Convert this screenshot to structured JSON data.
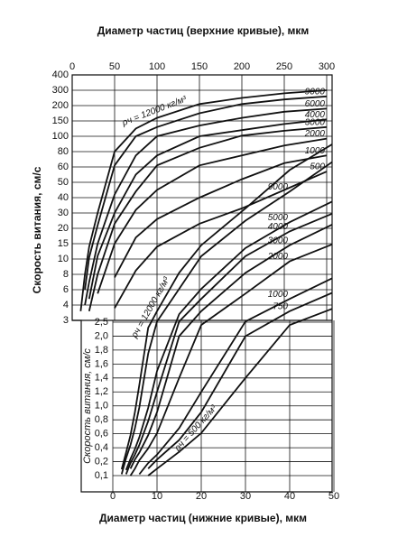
{
  "chart_data": {
    "type": "line",
    "x2_label": "Диаметр частиц (верхние кривые), мкм",
    "x_label": "Диаметр частиц (нижние кривые), мкм",
    "y_label": "Скорость витания, см/с",
    "y_inner_label": "Скорость витания, см/с",
    "color": "#111111",
    "grid": true,
    "x2lim": [
      0,
      300
    ],
    "x2ticks": [
      0,
      50,
      100,
      150,
      200,
      250,
      300
    ],
    "xlim": [
      0,
      50
    ],
    "xticks": [
      0,
      10,
      20,
      30,
      40,
      50
    ],
    "ylim": [
      0.1,
      400
    ],
    "yticks": [
      3,
      4,
      6,
      8,
      10,
      15,
      20,
      30,
      40,
      50,
      60,
      80,
      100,
      150,
      200,
      300,
      400
    ],
    "y_inner_ticks": [
      {
        "value": 0.1,
        "label": "0,1"
      },
      {
        "value": 0.2,
        "label": "0,2"
      },
      {
        "value": 0.4,
        "label": "0,4"
      },
      {
        "value": 0.6,
        "label": "0,6"
      },
      {
        "value": 0.8,
        "label": "0,8"
      },
      {
        "value": 1.0,
        "label": "1,0"
      },
      {
        "value": 1.2,
        "label": "1,2"
      },
      {
        "value": 1.4,
        "label": "1,4"
      },
      {
        "value": 1.6,
        "label": "1,6"
      },
      {
        "value": 1.8,
        "label": "1,8"
      },
      {
        "value": 2.0,
        "label": "2,0"
      },
      {
        "value": 2.5,
        "label": "2,5"
      }
    ],
    "series": [
      {
        "name": "ρч = 12000 кг/м³",
        "x_axis": "x2",
        "x": [
          10,
          15,
          20,
          30,
          50,
          75,
          100,
          150,
          200,
          250,
          300
        ],
        "values": [
          3.6,
          8,
          14,
          30,
          80,
          125,
          160,
          210,
          250,
          280,
          300
        ]
      },
      {
        "name": "9000",
        "x_axis": "x2",
        "x": [
          15,
          20,
          30,
          50,
          75,
          100,
          150,
          200,
          250,
          300
        ],
        "values": [
          6,
          10.5,
          22,
          62,
          100,
          130,
          175,
          210,
          240,
          260
        ]
      },
      {
        "name": "6000",
        "x_axis": "x2",
        "x": [
          15,
          20,
          30,
          50,
          75,
          100,
          150,
          200,
          250,
          300
        ],
        "values": [
          4,
          7,
          15,
          42,
          75,
          100,
          135,
          160,
          180,
          190
        ]
      },
      {
        "name": "4000",
        "x_axis": "x2",
        "x": [
          20,
          30,
          50,
          75,
          100,
          150,
          200,
          250,
          300
        ],
        "values": [
          4.8,
          11,
          30,
          55,
          75,
          100,
          120,
          140,
          155
        ]
      },
      {
        "name": "3000",
        "x_axis": "x2",
        "x": [
          20,
          30,
          50,
          75,
          100,
          150,
          200,
          250,
          300
        ],
        "values": [
          3.6,
          8,
          23,
          44,
          62,
          85,
          102,
          118,
          130
        ]
      },
      {
        "name": "2000",
        "x_axis": "x2",
        "x": [
          30,
          50,
          75,
          100,
          150,
          200,
          250,
          300
        ],
        "values": [
          5.5,
          15,
          32,
          45,
          62,
          75,
          88,
          97
        ]
      },
      {
        "name": "1000",
        "x_axis": "x2",
        "x": [
          50,
          75,
          100,
          150,
          200,
          250,
          300
        ],
        "values": [
          7.6,
          17,
          26,
          40,
          52,
          65,
          75
        ]
      },
      {
        "name": "500",
        "x_axis": "x2",
        "x": [
          50,
          75,
          100,
          150,
          200,
          250,
          300
        ],
        "values": [
          3.8,
          8.5,
          14,
          23,
          33,
          45,
          57
        ]
      },
      {
        "name": "ρч = 12000 кг/м³",
        "x_axis": "x",
        "x": [
          2,
          3,
          4,
          5,
          6,
          8,
          10,
          15,
          20,
          30,
          40,
          50
        ],
        "values": [
          0.145,
          0.33,
          0.58,
          0.91,
          1.3,
          2.3,
          3.6,
          8.2,
          14.5,
          33,
          58,
          91
        ]
      },
      {
        "name": "9000",
        "x_axis": "x",
        "x": [
          2,
          3,
          4,
          5,
          6,
          8,
          10,
          15,
          20,
          30,
          40,
          50
        ],
        "values": [
          0.11,
          0.25,
          0.44,
          0.68,
          0.98,
          1.75,
          2.7,
          6.1,
          10.9,
          25,
          44,
          68
        ]
      },
      {
        "name": "5000",
        "x_axis": "x",
        "x": [
          3,
          4,
          5,
          6,
          8,
          10,
          15,
          20,
          30,
          40,
          50
        ],
        "values": [
          0.14,
          0.24,
          0.38,
          0.55,
          0.97,
          1.5,
          3.4,
          6.1,
          13.6,
          24,
          38
        ]
      },
      {
        "name": "4000",
        "x_axis": "x",
        "x": [
          3,
          4,
          5,
          6,
          8,
          10,
          15,
          20,
          30,
          40,
          50
        ],
        "values": [
          0.11,
          0.19,
          0.3,
          0.44,
          0.78,
          1.2,
          2.7,
          4.8,
          10.9,
          19,
          30
        ]
      },
      {
        "name": "3000",
        "x_axis": "x",
        "x": [
          4,
          5,
          6,
          8,
          10,
          15,
          20,
          30,
          40,
          50
        ],
        "values": [
          0.15,
          0.23,
          0.33,
          0.58,
          0.91,
          2.0,
          3.6,
          8.2,
          14.5,
          23
        ]
      },
      {
        "name": "2000",
        "x_axis": "x",
        "x": [
          4,
          5,
          6,
          8,
          10,
          15,
          20,
          30,
          40,
          50
        ],
        "values": [
          0.1,
          0.15,
          0.22,
          0.39,
          0.61,
          1.4,
          2.4,
          5.5,
          9.7,
          15
        ]
      },
      {
        "name": "1000",
        "x_axis": "x",
        "x": [
          6,
          8,
          10,
          15,
          20,
          30,
          40,
          50
        ],
        "values": [
          0.11,
          0.19,
          0.3,
          0.68,
          1.2,
          2.7,
          4.8,
          7.6
        ]
      },
      {
        "name": "750",
        "x_axis": "x",
        "x": [
          8,
          10,
          15,
          20,
          30,
          40,
          50
        ],
        "values": [
          0.15,
          0.23,
          0.51,
          0.91,
          2.0,
          3.6,
          5.7
        ]
      },
      {
        "name": "ρч = 500 кг/м³",
        "x_axis": "x",
        "x": [
          8,
          10,
          15,
          20,
          30,
          40,
          50
        ],
        "values": [
          0.1,
          0.15,
          0.34,
          0.61,
          1.4,
          2.4,
          3.8
        ]
      }
    ]
  }
}
